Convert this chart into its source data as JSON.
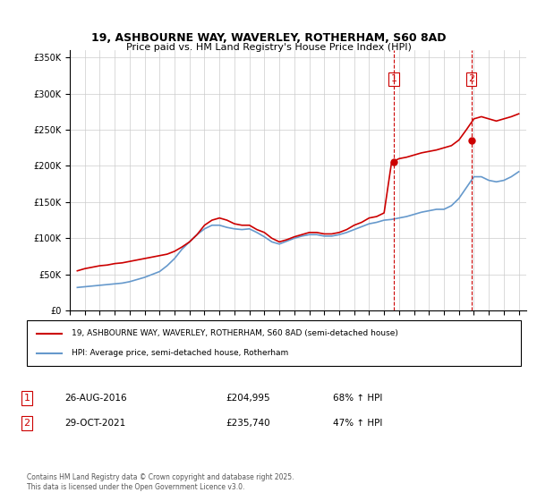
{
  "title_line1": "19, ASHBOURNE WAY, WAVERLEY, ROTHERHAM, S60 8AD",
  "title_line2": "Price paid vs. HM Land Registry's House Price Index (HPI)",
  "ylabel": "",
  "background_color": "#ffffff",
  "plot_bg_color": "#ffffff",
  "grid_color": "#cccccc",
  "red_line_color": "#cc0000",
  "blue_line_color": "#6699cc",
  "dashed_line_color": "#cc0000",
  "transaction1_date": "2016-08-26",
  "transaction1_x": 2016.65,
  "transaction1_price": 204995,
  "transaction1_label": "1",
  "transaction2_date": "2021-10-29",
  "transaction2_x": 2021.83,
  "transaction2_price": 235740,
  "transaction2_label": "2",
  "legend_entry1": "19, ASHBOURNE WAY, WAVERLEY, ROTHERHAM, S60 8AD (semi-detached house)",
  "legend_entry2": "HPI: Average price, semi-detached house, Rotherham",
  "table_row1": [
    "1",
    "26-AUG-2016",
    "£204,995",
    "68% ↑ HPI"
  ],
  "table_row2": [
    "2",
    "29-OCT-2021",
    "£235,740",
    "47% ↑ HPI"
  ],
  "footnote": "Contains HM Land Registry data © Crown copyright and database right 2025.\nThis data is licensed under the Open Government Licence v3.0.",
  "xlim": [
    1995,
    2025.5
  ],
  "ylim": [
    0,
    360000
  ],
  "yticks": [
    0,
    50000,
    100000,
    150000,
    200000,
    250000,
    300000,
    350000
  ],
  "xticks": [
    1995,
    1996,
    1997,
    1998,
    1999,
    2000,
    2001,
    2002,
    2003,
    2004,
    2005,
    2006,
    2007,
    2008,
    2009,
    2010,
    2011,
    2012,
    2013,
    2014,
    2015,
    2016,
    2017,
    2018,
    2019,
    2020,
    2021,
    2022,
    2023,
    2024,
    2025
  ],
  "hpi_data": {
    "years": [
      1995.5,
      1996.0,
      1996.5,
      1997.0,
      1997.5,
      1998.0,
      1998.5,
      1999.0,
      1999.5,
      2000.0,
      2000.5,
      2001.0,
      2001.5,
      2002.0,
      2002.5,
      2003.0,
      2003.5,
      2004.0,
      2004.5,
      2005.0,
      2005.5,
      2006.0,
      2006.5,
      2007.0,
      2007.5,
      2008.0,
      2008.5,
      2009.0,
      2009.5,
      2010.0,
      2010.5,
      2011.0,
      2011.5,
      2012.0,
      2012.5,
      2013.0,
      2013.5,
      2014.0,
      2014.5,
      2015.0,
      2015.5,
      2016.0,
      2016.5,
      2017.0,
      2017.5,
      2018.0,
      2018.5,
      2019.0,
      2019.5,
      2020.0,
      2020.5,
      2021.0,
      2021.5,
      2022.0,
      2022.5,
      2023.0,
      2023.5,
      2024.0,
      2024.5,
      2025.0
    ],
    "values": [
      32000,
      33000,
      34000,
      35000,
      36000,
      37000,
      38000,
      40000,
      43000,
      46000,
      50000,
      54000,
      62000,
      72000,
      85000,
      95000,
      105000,
      113000,
      118000,
      118000,
      115000,
      113000,
      112000,
      113000,
      108000,
      102000,
      95000,
      92000,
      96000,
      100000,
      103000,
      105000,
      105000,
      103000,
      103000,
      105000,
      108000,
      112000,
      116000,
      120000,
      122000,
      125000,
      126000,
      128000,
      130000,
      133000,
      136000,
      138000,
      140000,
      140000,
      145000,
      155000,
      170000,
      185000,
      185000,
      180000,
      178000,
      180000,
      185000,
      192000
    ]
  },
  "price_data": {
    "years": [
      1995.5,
      1996.0,
      1996.5,
      1997.0,
      1997.5,
      1998.0,
      1998.5,
      1999.0,
      1999.5,
      2000.0,
      2000.5,
      2001.0,
      2001.5,
      2002.0,
      2002.5,
      2003.0,
      2003.5,
      2004.0,
      2004.5,
      2005.0,
      2005.5,
      2006.0,
      2006.5,
      2007.0,
      2007.5,
      2008.0,
      2008.5,
      2009.0,
      2009.5,
      2010.0,
      2010.5,
      2011.0,
      2011.5,
      2012.0,
      2012.5,
      2013.0,
      2013.5,
      2014.0,
      2014.5,
      2015.0,
      2015.5,
      2016.0,
      2016.5,
      2017.0,
      2017.5,
      2018.0,
      2018.5,
      2019.0,
      2019.5,
      2020.0,
      2020.5,
      2021.0,
      2021.5,
      2022.0,
      2022.5,
      2023.0,
      2023.5,
      2024.0,
      2024.5,
      2025.0
    ],
    "values": [
      55000,
      58000,
      60000,
      62000,
      63000,
      65000,
      66000,
      68000,
      70000,
      72000,
      74000,
      76000,
      78000,
      82000,
      88000,
      95000,
      105000,
      118000,
      125000,
      128000,
      125000,
      120000,
      118000,
      118000,
      112000,
      108000,
      100000,
      95000,
      98000,
      102000,
      105000,
      108000,
      108000,
      106000,
      106000,
      108000,
      112000,
      118000,
      122000,
      128000,
      130000,
      135000,
      204995,
      210000,
      212000,
      215000,
      218000,
      220000,
      222000,
      225000,
      228000,
      235740,
      250000,
      265000,
      268000,
      265000,
      262000,
      265000,
      268000,
      272000
    ]
  }
}
